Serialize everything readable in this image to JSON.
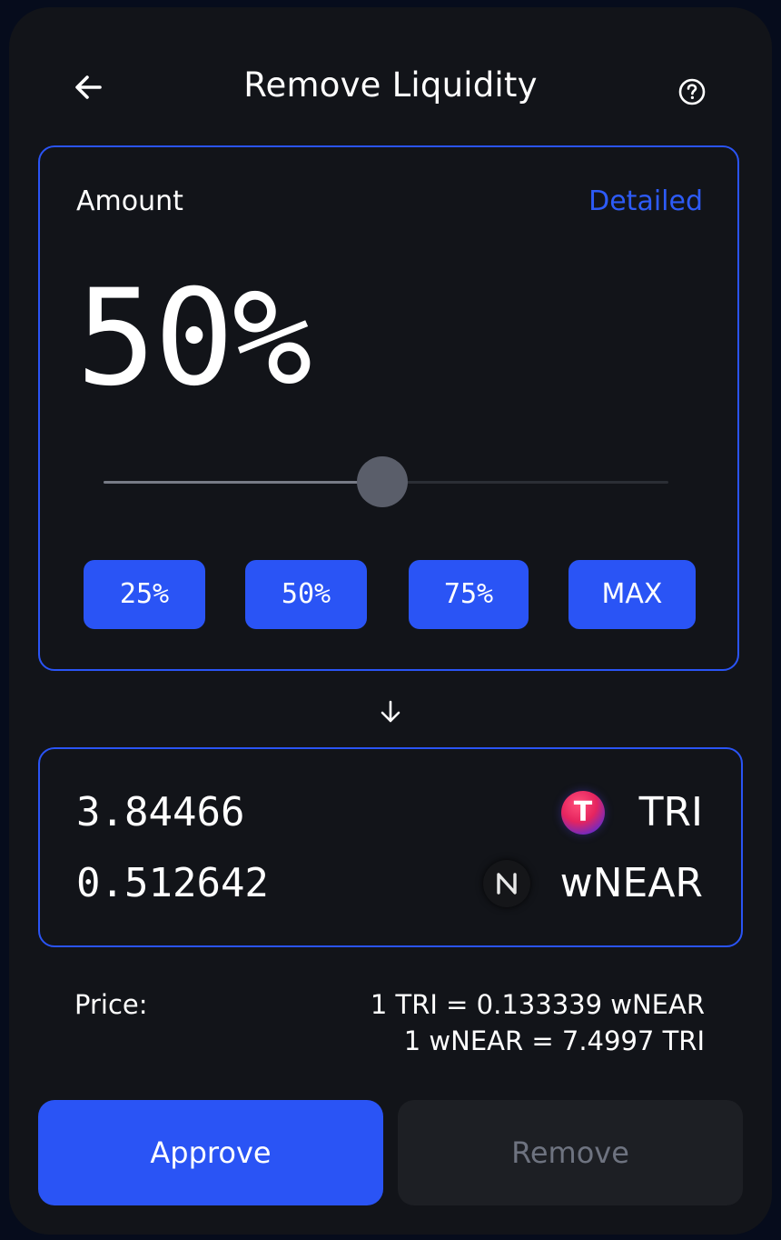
{
  "header": {
    "title": "Remove Liquidity",
    "back_icon": "arrow-left-icon",
    "help_icon": "question-circle-icon"
  },
  "amount_panel": {
    "label": "Amount",
    "detailed_link": "Detailed",
    "percent_display": "50%",
    "slider_value_percent": 50,
    "presets": [
      "25%",
      "50%",
      "75%",
      "MAX"
    ]
  },
  "arrow_icon": "arrow-down-icon",
  "output": {
    "rows": [
      {
        "amount": "3.84466",
        "symbol": "TRI",
        "icon": "tri-token-icon"
      },
      {
        "amount": "0.512642",
        "symbol": "wNEAR",
        "icon": "near-token-icon"
      }
    ]
  },
  "price": {
    "label": "Price:",
    "line1": "1 TRI = 0.133339 wNEAR",
    "line2": "1 wNEAR = 7.4997 TRI"
  },
  "actions": {
    "approve_label": "Approve",
    "remove_label": "Remove"
  },
  "colors": {
    "accent": "#2a54f5",
    "card_bg": "#121419",
    "page_bg": "#060c1c",
    "disabled_text": "#6e7380"
  }
}
